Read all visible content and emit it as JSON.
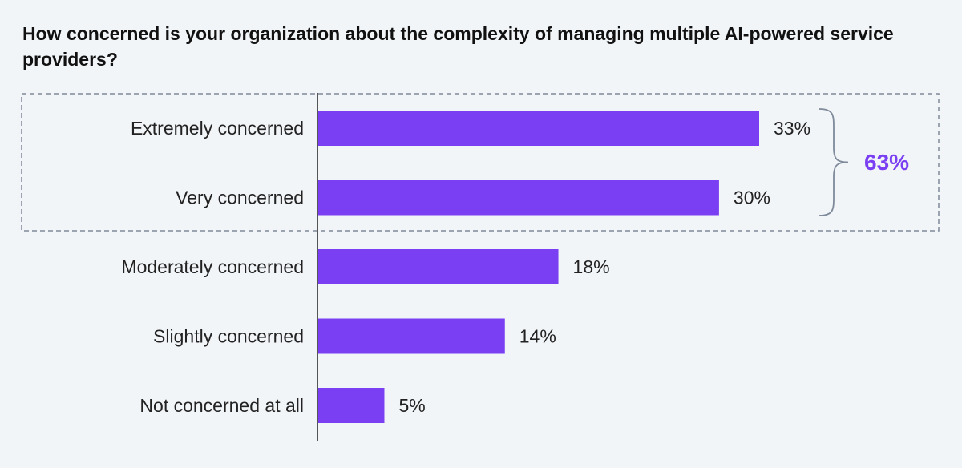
{
  "chart_data": {
    "type": "bar",
    "orientation": "horizontal",
    "title": "How concerned is your organization about the complexity of managing multiple AI-powered service providers?",
    "categories": [
      "Extremely concerned",
      "Very concerned",
      "Moderately concerned",
      "Slightly concerned",
      "Not concerned at all"
    ],
    "values": [
      33,
      30,
      18,
      14,
      5
    ],
    "value_labels": [
      "33%",
      "30%",
      "18%",
      "14%",
      "5%"
    ],
    "xlim": [
      0,
      35
    ],
    "grid": false,
    "highlight": {
      "categories": [
        "Extremely concerned",
        "Very concerned"
      ],
      "total_label": "63%"
    },
    "colors": {
      "bar": "#7a3ff2",
      "accent": "#7a3ff2",
      "frame": "#7f8a9a",
      "axis": "#555555"
    }
  }
}
